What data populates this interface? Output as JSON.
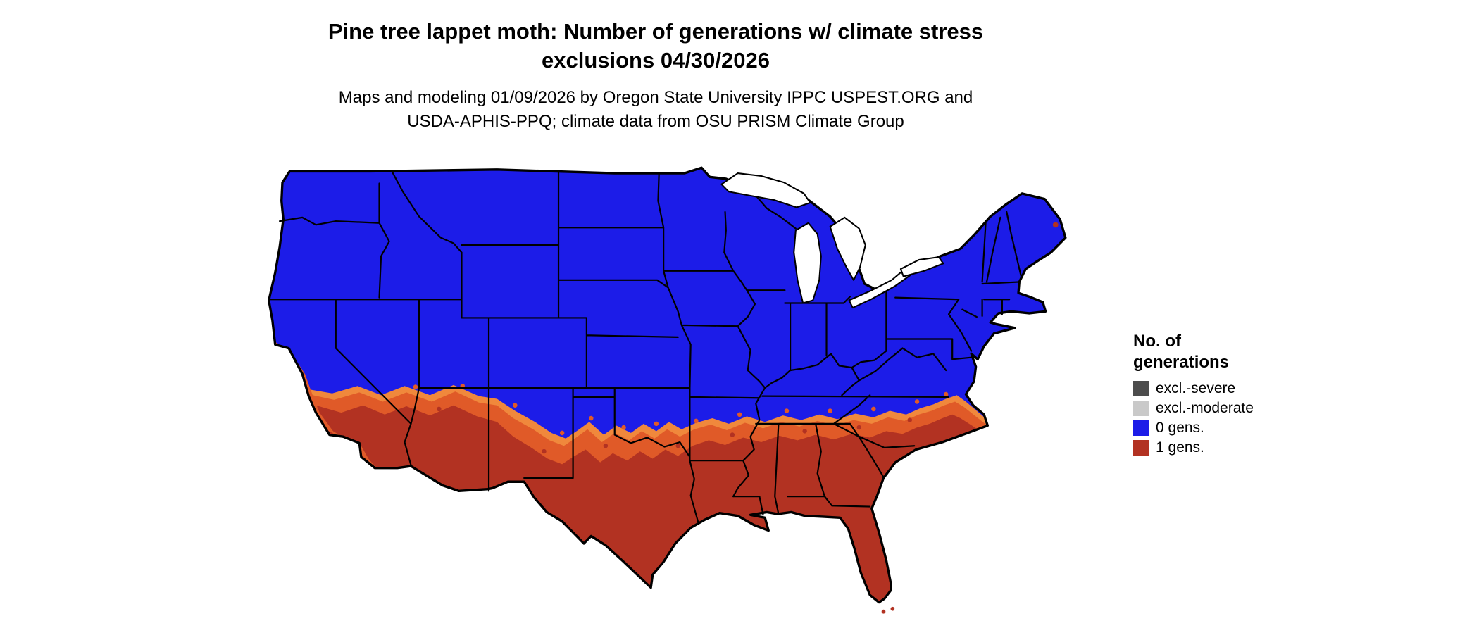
{
  "title": {
    "line1": "Pine tree lappet moth: Number of generations w/ climate stress",
    "line2": "exclusions 04/30/2026"
  },
  "subtitle": {
    "line1": "Maps and modeling 01/09/2026 by Oregon State University IPPC USPEST.ORG and",
    "line2": "USDA-APHIS-PPQ; climate data from OSU PRISM Climate Group"
  },
  "legend": {
    "title_line1": "No. of",
    "title_line2": "generations",
    "items": [
      {
        "label": "excl.-severe",
        "color": "#4D4D4D"
      },
      {
        "label": "excl.-moderate",
        "color": "#C9C9C9"
      },
      {
        "label": "0 gens.",
        "color": "#1C1CE8"
      },
      {
        "label": "1 gens.",
        "color": "#B23222"
      }
    ]
  },
  "map": {
    "region": "Contiguous United States",
    "colors": {
      "gens0": "#1C1CE8",
      "gens1": "#B23222",
      "transition": "#E05A28",
      "transition_light": "#F0883C",
      "water": "#FFFFFF",
      "border": "#000000"
    }
  },
  "chart_data": {
    "type": "choropleth-map",
    "region": "Contiguous United States",
    "map_date": "04/30/2026",
    "model_run_date": "01/09/2026",
    "classes": [
      {
        "label": "excl.-severe",
        "color": "#4D4D4D"
      },
      {
        "label": "excl.-moderate",
        "color": "#C9C9C9"
      },
      {
        "label": "0 gens.",
        "color": "#1C1CE8"
      },
      {
        "label": "1 gens.",
        "color": "#B23222"
      }
    ],
    "pattern": "Northern and central U.S. shown blue (0 generations). Southern tier shown red (1 generation): coastal/southern California, southern Arizona and New Mexico, southern half of Texas, the Gulf states, all of Florida, and the southern Atlantic coastal plain up to about Cape Hatteras. An orange transition fringe runs along the blue/red boundary and along the central California coast."
  }
}
